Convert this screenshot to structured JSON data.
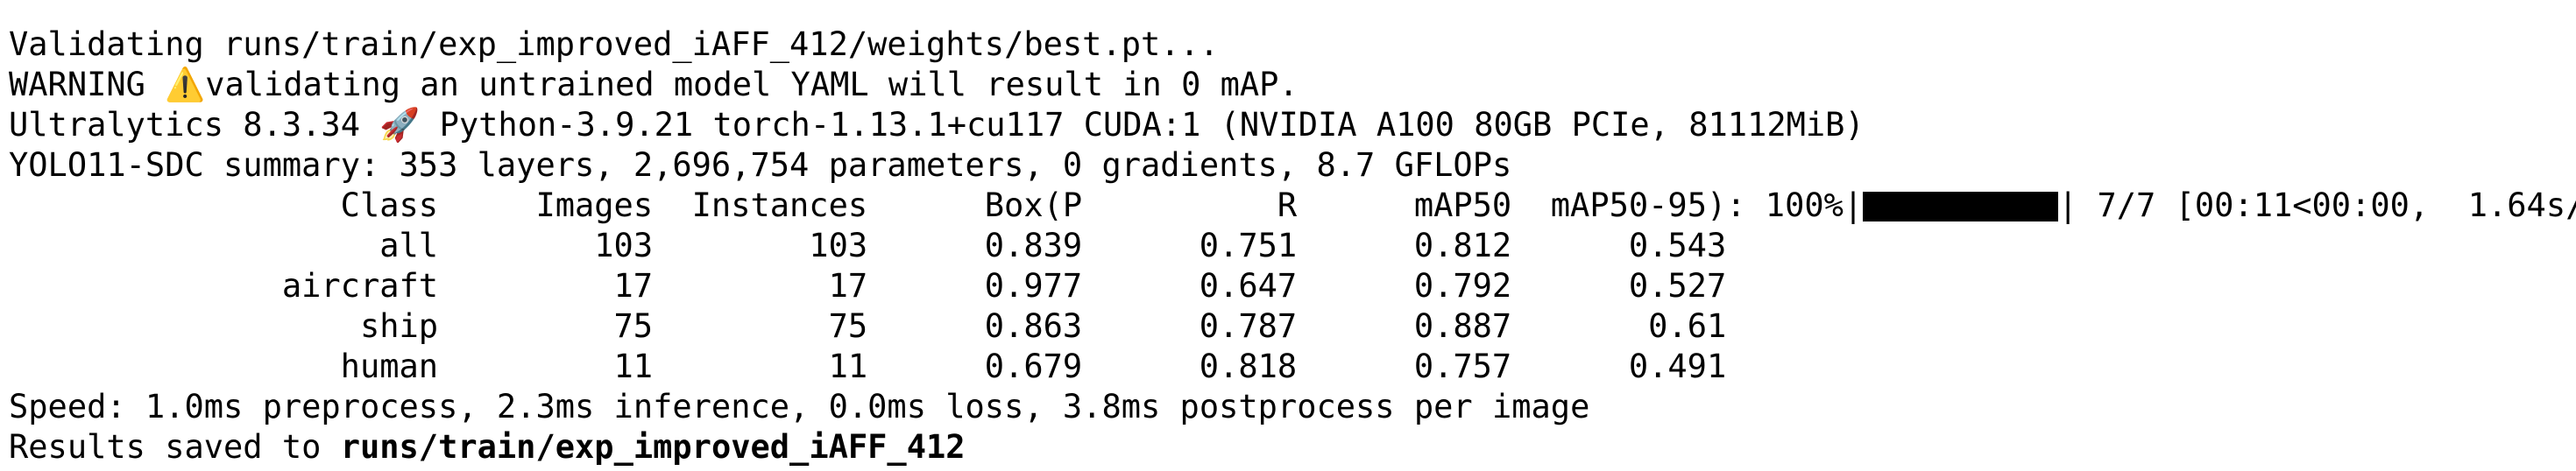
{
  "lines": [
    "Validating runs/train/exp_improved_iAFF_412/weights/best.pt...",
    "WARNING ⚠️validating an untrained model YAML will result in 0 mAP.",
    "Ultralytics 8.3.34 🚀 Python-3.9.21 torch-1.13.1+cu117 CUDA:1 (NVIDIA A100 80GB PCIe, 81112MiB)",
    "YOLO11-SDC summary: 353 layers, 2,696,754 parameters, 0 gradients, 8.7 GFLOPs"
  ],
  "table": {
    "header": [
      "Class",
      "Images",
      "Instances",
      "Box(P",
      "R",
      "mAP50",
      "mAP50-95)"
    ],
    "progress_prefix": ": 100%|",
    "progress_suffix": "| 7/7 [00:11<00:00,  1.64s/",
    "rows": [
      [
        "all",
        "103",
        "103",
        "0.839",
        "0.751",
        "0.812",
        "0.543"
      ],
      [
        "aircraft",
        "17",
        "17",
        "0.977",
        "0.647",
        "0.792",
        "0.527"
      ],
      [
        "ship",
        "75",
        "75",
        "0.863",
        "0.787",
        "0.887",
        "0.61"
      ],
      [
        "human",
        "11",
        "11",
        "0.679",
        "0.818",
        "0.757",
        "0.491"
      ]
    ]
  },
  "speed": "Speed: 1.0ms preprocess, 2.3ms inference, 0.0ms loss, 3.8ms postprocess per image",
  "results": {
    "prefix": "Results saved to ",
    "path": "runs/train/exp_improved_iAFF_412"
  }
}
